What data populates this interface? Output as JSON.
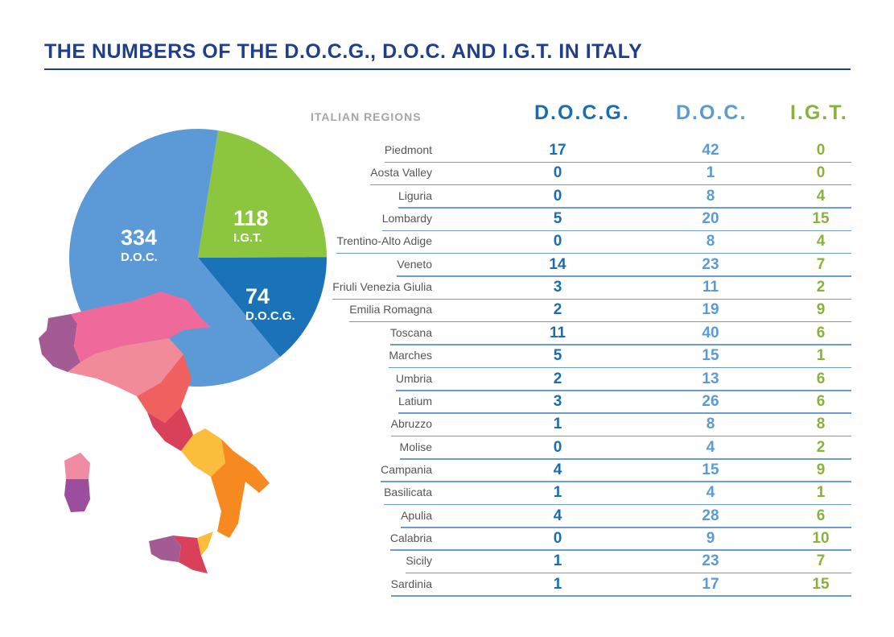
{
  "title": "THE NUMBERS OF THE D.O.C.G., D.O.C. AND I.G.T. IN ITALY",
  "chart_data": [
    {
      "type": "pie",
      "slices": [
        {
          "label": "I.G.T.",
          "value": 118,
          "color": "#8cc63f"
        },
        {
          "label": "D.O.C.G.",
          "value": 74,
          "color": "#1a73b8"
        },
        {
          "label": "D.O.C.",
          "value": 334,
          "color": "#5b9ad6"
        }
      ]
    },
    {
      "type": "table",
      "columns": [
        "ITALIAN REGIONS",
        "D.O.C.G.",
        "D.O.C.",
        "I.G.T."
      ],
      "column_colors": [
        "#a6a6a6",
        "#1a6db5",
        "#5b9bd5",
        "#8ab13b"
      ],
      "rows": [
        [
          "Piedmont",
          17,
          42,
          0
        ],
        [
          "Aosta Valley",
          0,
          1,
          0
        ],
        [
          "Liguria",
          0,
          8,
          4
        ],
        [
          "Lombardy",
          5,
          20,
          15
        ],
        [
          "Trentino-Alto Adige",
          0,
          8,
          4
        ],
        [
          "Veneto",
          14,
          23,
          7
        ],
        [
          "Friuli Venezia Giulia",
          3,
          11,
          2
        ],
        [
          "Emilia Romagna",
          2,
          19,
          9
        ],
        [
          "Toscana",
          11,
          40,
          6
        ],
        [
          "Marches",
          5,
          15,
          1
        ],
        [
          "Umbria",
          2,
          13,
          6
        ],
        [
          "Latium",
          3,
          26,
          6
        ],
        [
          "Abruzzo",
          1,
          8,
          8
        ],
        [
          "Molise",
          0,
          4,
          2
        ],
        [
          "Campania",
          4,
          15,
          9
        ],
        [
          "Basilicata",
          1,
          4,
          1
        ],
        [
          "Apulia",
          4,
          28,
          6
        ],
        [
          "Calabria",
          0,
          9,
          10
        ],
        [
          "Sicily",
          1,
          23,
          7
        ],
        [
          "Sardinia",
          1,
          17,
          15
        ]
      ]
    }
  ]
}
